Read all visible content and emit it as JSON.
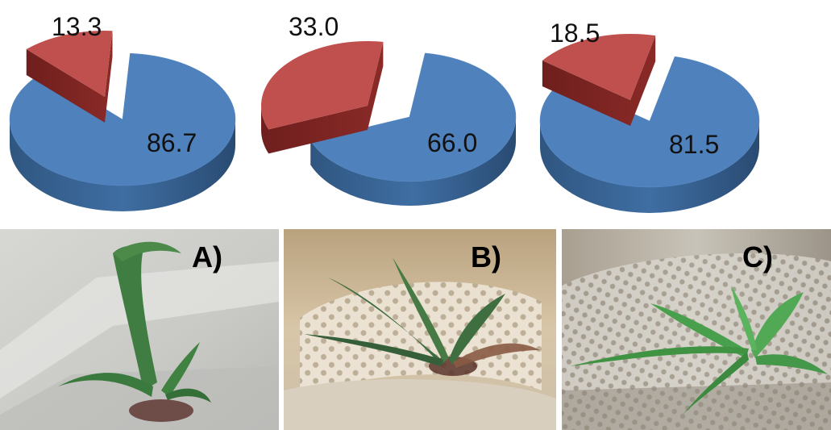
{
  "chart_data": [
    {
      "type": "pie",
      "values": [
        86.7,
        13.3
      ],
      "labels": [
        "86.7",
        "13.3"
      ],
      "colors": [
        "#4f81bd",
        "#c0504d"
      ],
      "exploded": 1
    },
    {
      "type": "pie",
      "values": [
        66.0,
        33.0
      ],
      "labels": [
        "66.0",
        "33.0"
      ],
      "colors": [
        "#4f81bd",
        "#c0504d"
      ],
      "exploded": 1
    },
    {
      "type": "pie",
      "values": [
        81.5,
        18.5
      ],
      "labels": [
        "81.5",
        "18.5"
      ],
      "colors": [
        "#4f81bd",
        "#c0504d"
      ],
      "exploded": 1
    }
  ],
  "panels": [
    {
      "label": "A)"
    },
    {
      "label": "B)"
    },
    {
      "label": "C)"
    }
  ]
}
